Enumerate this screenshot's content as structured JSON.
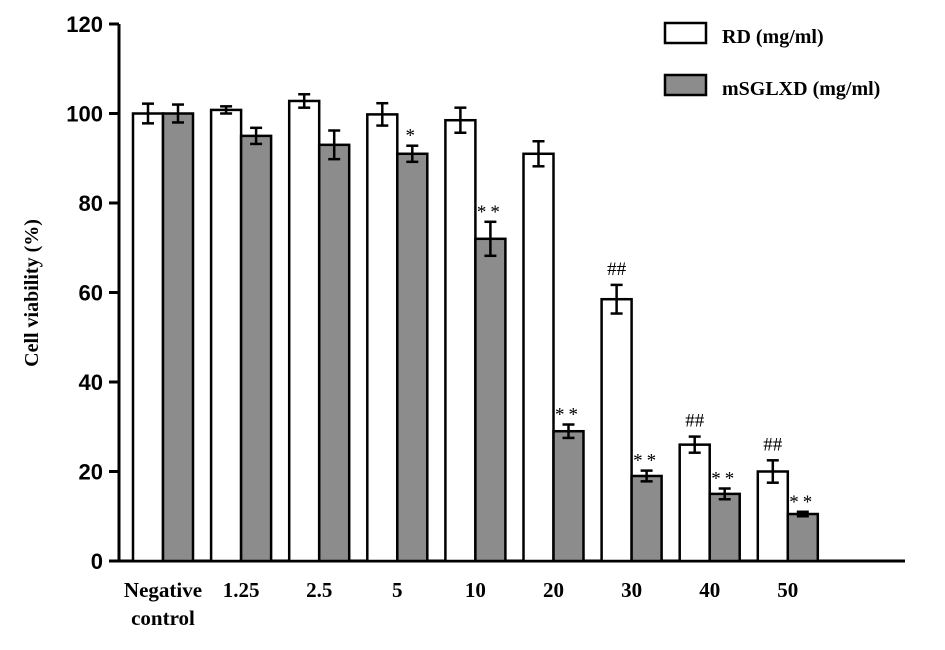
{
  "chart_data": {
    "type": "bar",
    "title": "",
    "xlabel": "",
    "ylabel": "Cell viability (%)",
    "ylim": [
      0,
      120
    ],
    "yticks": [
      0,
      20,
      40,
      60,
      80,
      100,
      120
    ],
    "grid": false,
    "legend_position": "top-right",
    "categories": [
      [
        "Negative",
        "control"
      ],
      [
        "1.25"
      ],
      [
        "2.5"
      ],
      [
        "5"
      ],
      [
        "10"
      ],
      [
        "20"
      ],
      [
        "30"
      ],
      [
        "40"
      ],
      [
        "50"
      ]
    ],
    "series": [
      {
        "name": "RD (mg/ml)",
        "color": "#ffffff",
        "values": [
          100,
          100.8,
          102.8,
          99.8,
          98.5,
          91,
          58.5,
          26,
          20
        ],
        "errors": [
          2.2,
          0.8,
          1.5,
          2.5,
          2.8,
          2.8,
          3.2,
          1.8,
          2.5
        ],
        "annotations": [
          "",
          "",
          "",
          "",
          "",
          "",
          "##",
          "##",
          "##"
        ]
      },
      {
        "name": "mSGLXD (mg/ml)",
        "color": "#8c8c8c",
        "values": [
          100,
          95,
          93,
          91,
          72,
          29,
          19,
          15,
          10.5
        ],
        "errors": [
          2.0,
          1.8,
          3.2,
          1.8,
          3.8,
          1.5,
          1.2,
          1.2,
          0.5
        ],
        "annotations": [
          "",
          "",
          "",
          "*",
          "**",
          "**",
          "**",
          "**",
          "**"
        ]
      }
    ]
  }
}
